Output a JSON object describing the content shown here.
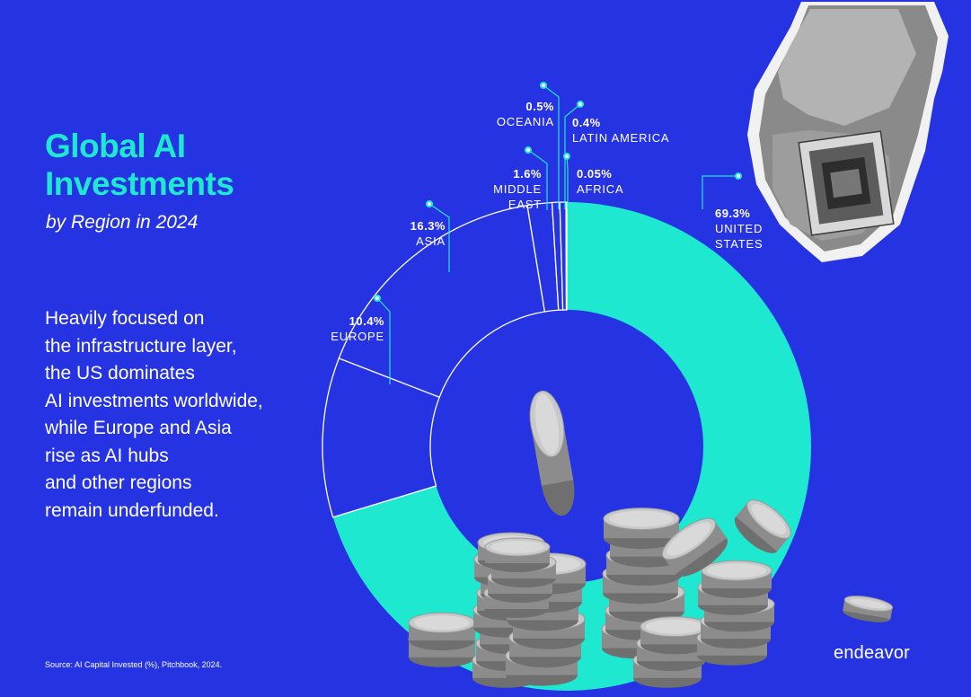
{
  "header": {
    "title_line1": "Global AI",
    "title_line2": "Investments",
    "subtitle": "by Region in 2024"
  },
  "body": {
    "lines": [
      "Heavily focused on",
      "the infrastructure layer,",
      "the US dominates",
      "AI investments worldwide,",
      "while Europe and Asia",
      "rise as AI hubs",
      "and other regions",
      "remain underfunded."
    ]
  },
  "footer": {
    "source": "Source: AI Capital Invested (%), Pitchbook, 2024.",
    "brand": "endeavor"
  },
  "colors": {
    "background": "#2633e3",
    "accent": "#1ee8cf",
    "white": "#ffffff"
  },
  "chart_data": {
    "type": "pie",
    "style": "donut",
    "title": "Global AI Investments by Region in 2024",
    "unit": "%",
    "highlight": "United States",
    "series": [
      {
        "name": "United States",
        "value": 69.3,
        "label_value": "69.3%",
        "label_lines": [
          "UNITED",
          "STATES"
        ]
      },
      {
        "name": "Europe",
        "value": 10.4,
        "label_value": "10.4%",
        "label_lines": [
          "EUROPE"
        ]
      },
      {
        "name": "Asia",
        "value": 16.3,
        "label_value": "16.3%",
        "label_lines": [
          "ASIA"
        ]
      },
      {
        "name": "Middle East",
        "value": 1.6,
        "label_value": "1.6%",
        "label_lines": [
          "MIDDLE",
          "EAST"
        ]
      },
      {
        "name": "Oceania",
        "value": 0.5,
        "label_value": "0.5%",
        "label_lines": [
          "OCEANIA"
        ]
      },
      {
        "name": "Latin America",
        "value": 0.4,
        "label_value": "0.4%",
        "label_lines": [
          "LATIN AMERICA"
        ]
      },
      {
        "name": "Africa",
        "value": 0.05,
        "label_value": "0.05%",
        "label_lines": [
          "AFRICA"
        ]
      }
    ]
  }
}
